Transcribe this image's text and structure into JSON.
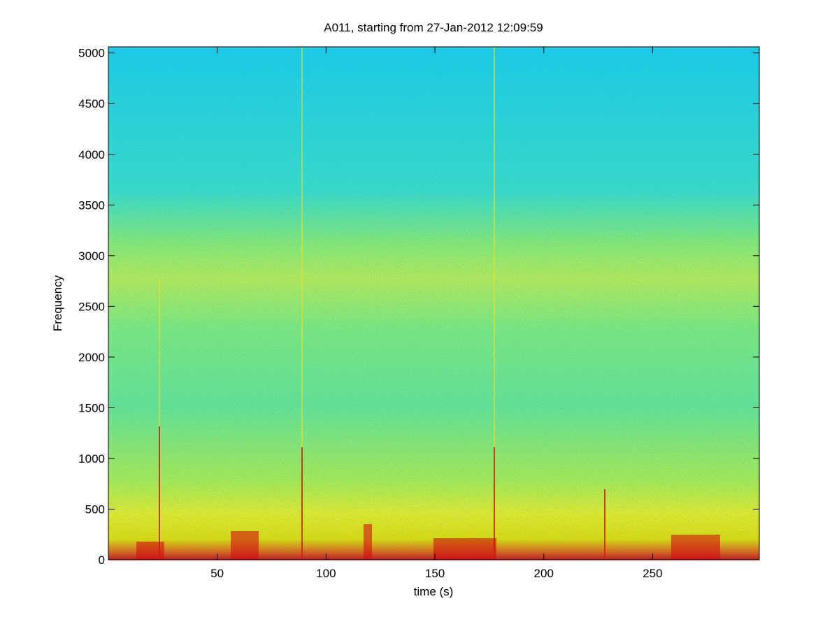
{
  "chart_data": {
    "type": "spectrogram",
    "title": "A011, starting from 27-Jan-2012 12:09:59",
    "x_label": "time (s)",
    "y_label": "Frequency",
    "xlim": [
      0,
      299
    ],
    "ylim": [
      0,
      5060
    ],
    "xticks": [
      50,
      100,
      150,
      200,
      250
    ],
    "yticks": [
      0,
      500,
      1000,
      1500,
      2000,
      2500,
      3000,
      3500,
      4000,
      4500,
      5000
    ]
  }
}
